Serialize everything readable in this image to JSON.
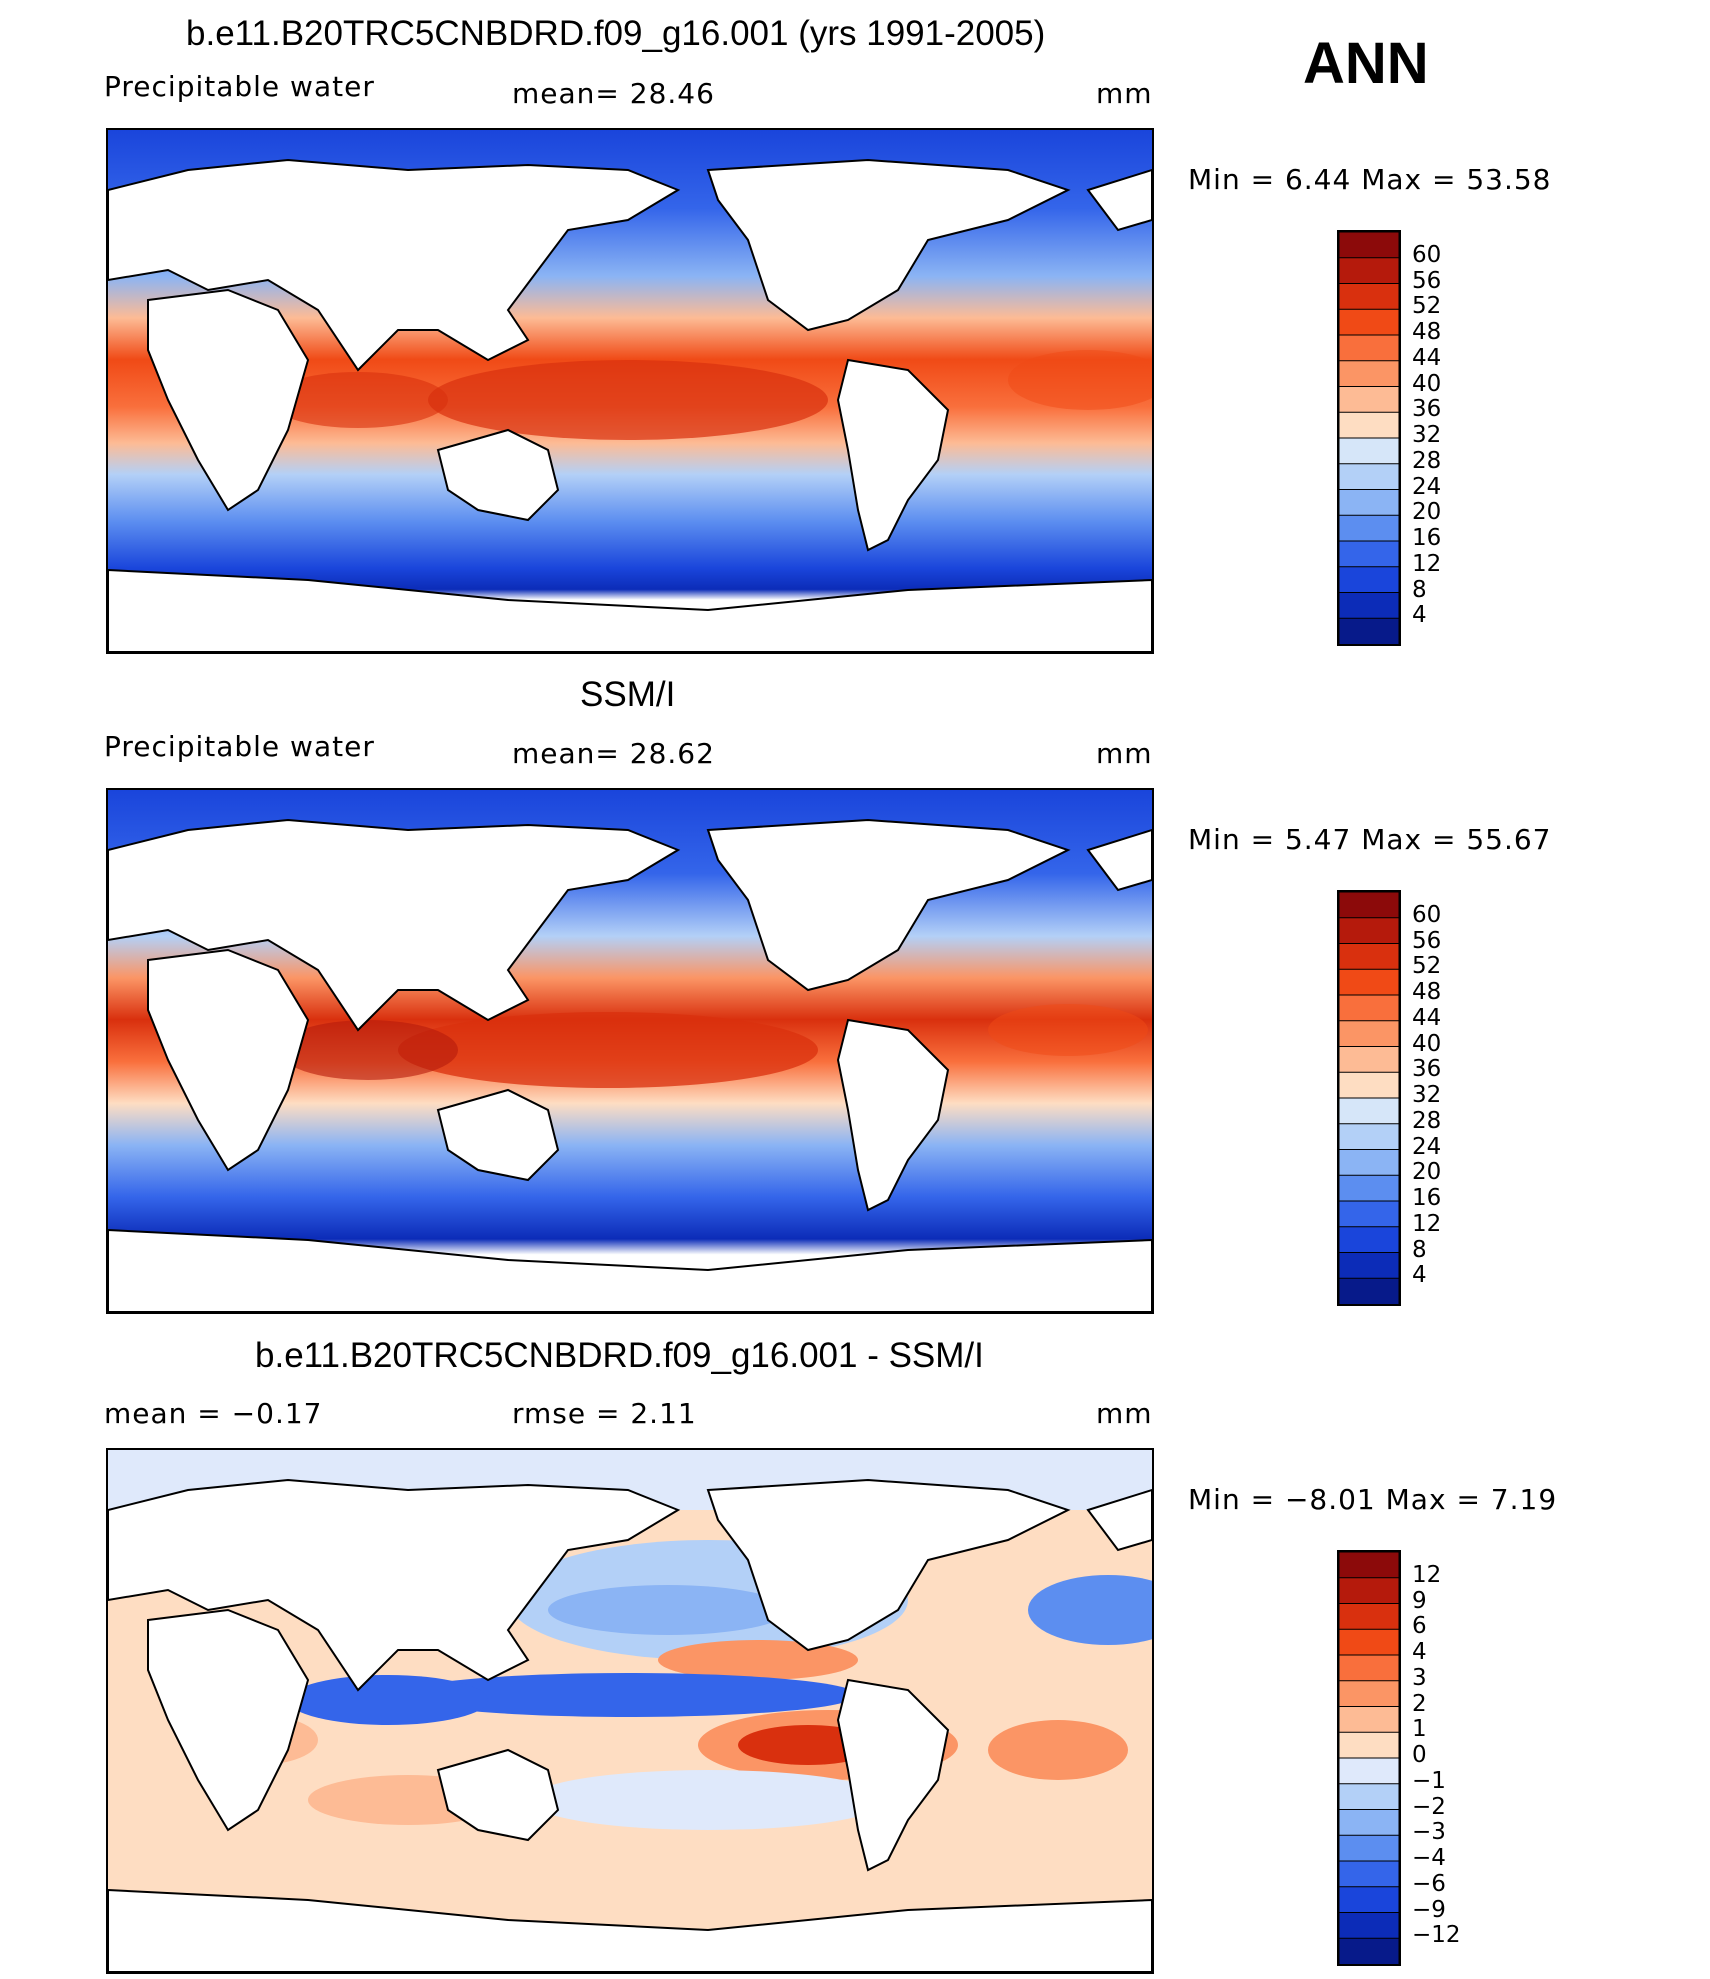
{
  "season": "ANN",
  "panels": [
    {
      "title": "b.e11.B20TRC5CNBDRD.f09_g16.001 (yrs 1991-2005)",
      "left_label": "Precipitable  water",
      "center_label": "mean=   28.46",
      "units": "mm",
      "minmax": "Min  =     6.44  Max  =     53.58",
      "colorbar": {
        "labels": [
          "60",
          "56",
          "52",
          "48",
          "44",
          "40",
          "36",
          "32",
          "28",
          "24",
          "20",
          "16",
          "12",
          "8",
          "4"
        ],
        "colors": [
          "#8c0a0a",
          "#b51a0c",
          "#d9300e",
          "#f04a16",
          "#f96f3c",
          "#fb9565",
          "#fdbb95",
          "#feddc2",
          "#d6e6f9",
          "#b3d0f7",
          "#8bb4f4",
          "#5c8ef0",
          "#3465ea",
          "#1a45db",
          "#0c2cb8",
          "#071a8a"
        ],
        "values": [
          60,
          56,
          52,
          48,
          44,
          40,
          36,
          32,
          28,
          24,
          20,
          16,
          12,
          8,
          4
        ]
      }
    },
    {
      "title": "SSM/I",
      "left_label": "Precipitable  water",
      "center_label": "mean=   28.62",
      "units": "mm",
      "minmax": "Min  =     5.47  Max  =     55.67",
      "colorbar": {
        "labels": [
          "60",
          "56",
          "52",
          "48",
          "44",
          "40",
          "36",
          "32",
          "28",
          "24",
          "20",
          "16",
          "12",
          "8",
          "4"
        ],
        "colors": [
          "#8c0a0a",
          "#b51a0c",
          "#d9300e",
          "#f04a16",
          "#f96f3c",
          "#fb9565",
          "#fdbb95",
          "#feddc2",
          "#d6e6f9",
          "#b3d0f7",
          "#8bb4f4",
          "#5c8ef0",
          "#3465ea",
          "#1a45db",
          "#0c2cb8",
          "#071a8a"
        ],
        "values": [
          60,
          56,
          52,
          48,
          44,
          40,
          36,
          32,
          28,
          24,
          20,
          16,
          12,
          8,
          4
        ]
      }
    },
    {
      "title": "b.e11.B20TRC5CNBDRD.f09_g16.001 - SSM/I",
      "left_label": "mean  =     −0.17",
      "center_label": "rmse  =     2.11",
      "units": "mm",
      "minmax": "Min  =    −8.01  Max  =       7.19",
      "colorbar": {
        "labels": [
          "12",
          "9",
          "6",
          "4",
          "3",
          "2",
          "1",
          "0",
          "−1",
          "−2",
          "−3",
          "−4",
          "−6",
          "−9",
          "−12"
        ],
        "colors": [
          "#8c0a0a",
          "#b51a0c",
          "#d9300e",
          "#f04a16",
          "#f96f3c",
          "#fb9565",
          "#fdbb95",
          "#feddc2",
          "#dfe9fb",
          "#b3d0f7",
          "#8bb4f4",
          "#5c8ef0",
          "#3465ea",
          "#1a45db",
          "#0c2cb8",
          "#071a8a"
        ],
        "values": [
          12,
          9,
          6,
          4,
          3,
          2,
          1,
          0,
          -1,
          -2,
          -3,
          -4,
          -6,
          -9,
          -12
        ]
      }
    }
  ],
  "colors": {
    "ocean_warm": "#f2561e",
    "ocean_cool": "#2a5ae8",
    "land": "#ffffff",
    "coastline": "#000000"
  }
}
